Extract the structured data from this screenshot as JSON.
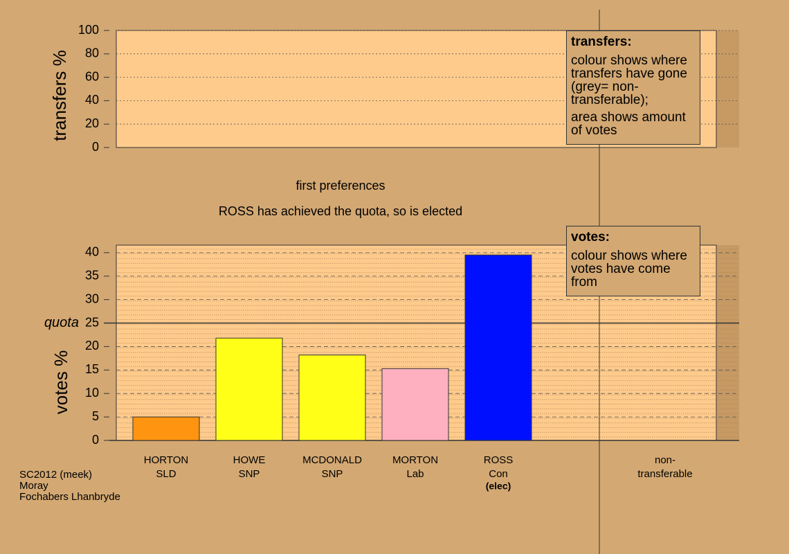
{
  "chart_data": [
    {
      "type": "bar",
      "ylabel": "transfers %",
      "ylim": [
        0,
        100
      ],
      "yticks": [
        0,
        20,
        40,
        60,
        80,
        100
      ],
      "grid": true,
      "legend": {
        "title": "transfers:",
        "lines": [
          "colour shows where transfers have gone (grey= non-transferable);",
          "area shows amount of votes"
        ]
      }
    },
    {
      "type": "bar",
      "title": "first preferences",
      "subtitle": "ROSS has achieved the quota, so is elected",
      "ylabel": "votes %",
      "ylim": [
        0,
        41.6
      ],
      "yticks": [
        0,
        5,
        10,
        15,
        20,
        25,
        30,
        35,
        40
      ],
      "grid": true,
      "categories": [
        "HORTON",
        "HOWE",
        "MCDONALD",
        "MORTON",
        "ROSS"
      ],
      "parties": [
        "SLD",
        "SNP",
        "SNP",
        "Lab",
        "Con"
      ],
      "status": [
        null,
        null,
        null,
        null,
        "(elec)"
      ],
      "values": [
        5.0,
        21.8,
        18.2,
        15.3,
        39.5
      ],
      "colors": [
        "#ff9410",
        "#ffff18",
        "#ffff18",
        "#ffb0c0",
        "#0010ff"
      ],
      "quota": {
        "value": 25,
        "label": "quota"
      },
      "extra_column": [
        "non-",
        "transferable"
      ],
      "legend": {
        "title": "votes:",
        "lines": [
          "colour shows where votes have come from"
        ]
      }
    }
  ],
  "source": [
    "SC2012 (meek)",
    "Moray",
    "Fochabers Lhanbryde"
  ]
}
